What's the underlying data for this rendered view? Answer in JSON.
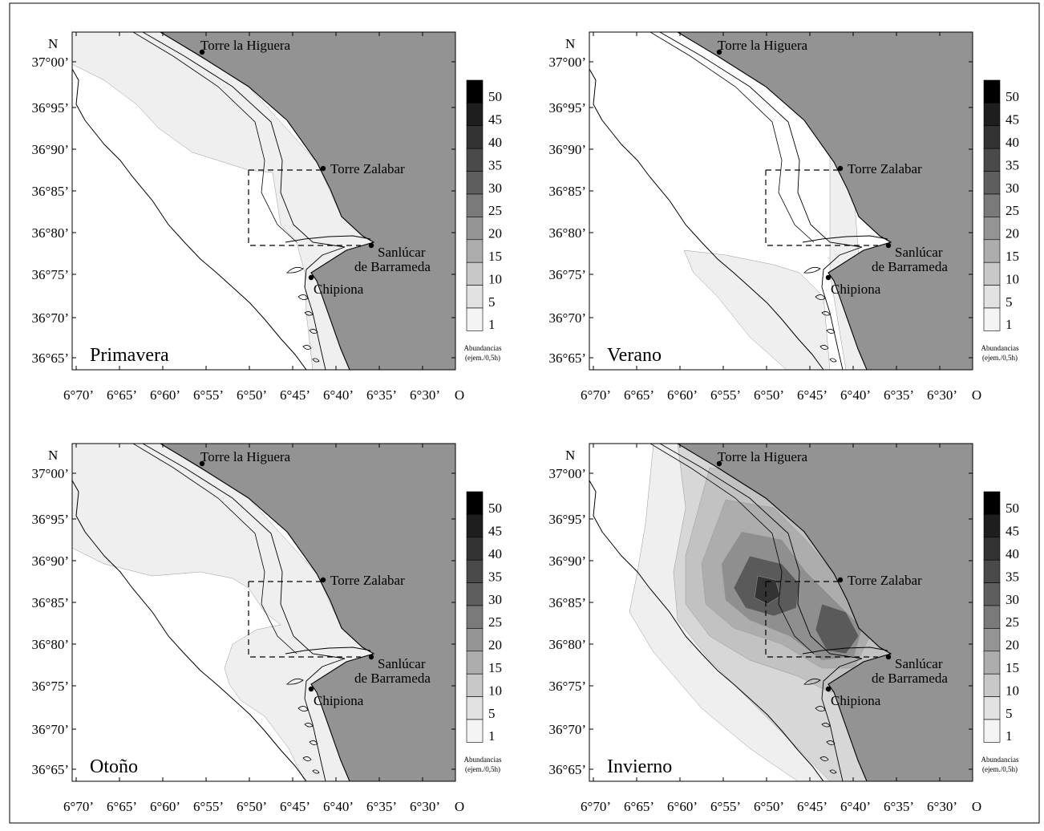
{
  "figure": {
    "north_label": "N",
    "west_label": "O",
    "lat_ticks": [
      "37°00’",
      "36°95’",
      "36°90’",
      "36°85’",
      "36°80’",
      "36°75’",
      "36°70’",
      "36°65’"
    ],
    "lon_ticks": [
      "6°70’",
      "6°65’",
      "6°60’",
      "6°55’",
      "6°50’",
      "6°45’",
      "6°40’",
      "6°35’",
      "6°30’"
    ],
    "places": {
      "torre_higuera": "Torre la Higuera",
      "torre_zalabar": "Torre Zalabar",
      "sanlucar_1": "Sanlúcar",
      "sanlucar_2": "de Barrameda",
      "chipiona": "Chipiona"
    },
    "legend": {
      "values": [
        "50",
        "45",
        "40",
        "35",
        "30",
        "25",
        "20",
        "15",
        "10",
        "5",
        "1"
      ],
      "colors": [
        "#000000",
        "#1e1e1e",
        "#333333",
        "#4a4a4a",
        "#5e5e5e",
        "#7a7a7a",
        "#949494",
        "#adadad",
        "#c8c8c8",
        "#e2e2e2",
        "#f4f4f4"
      ],
      "title_1": "Abundancias",
      "title_2": "(ejem./0,5h)"
    },
    "panels": [
      {
        "season": "Primavera"
      },
      {
        "season": "Verano"
      },
      {
        "season": "Otoño"
      },
      {
        "season": "Invierno"
      }
    ],
    "colors": {
      "sea_deep": "#939393",
      "low": "#efefef",
      "land": "#ffffff"
    }
  }
}
